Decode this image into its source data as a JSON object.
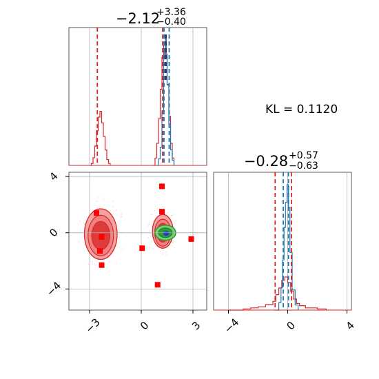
{
  "chart_data": {
    "type": "scatter",
    "annotation": "KL = 0.1120",
    "colors": {
      "red": "#d62728",
      "blue": "#1f77b4",
      "green": "#2ca02c",
      "marker": "#ff0000",
      "grid": "#b0b0b0"
    },
    "panels": {
      "top": {
        "type": "histogram",
        "title": {
          "main": "−2.12",
          "sup": "+3.36",
          "sub": "−0.40"
        },
        "xlim": [
          -4.2,
          3.8
        ],
        "vlines_red": [
          -2.55,
          1.24
        ],
        "vlines_blue": [
          1.32,
          1.62
        ],
        "red_series": [
          {
            "x": -3.0,
            "h": 0.0
          },
          {
            "x": -2.9,
            "h": 0.02
          },
          {
            "x": -2.8,
            "h": 0.08
          },
          {
            "x": -2.7,
            "h": 0.2
          },
          {
            "x": -2.6,
            "h": 0.36
          },
          {
            "x": -2.5,
            "h": 0.5
          },
          {
            "x": -2.4,
            "h": 0.56
          },
          {
            "x": -2.3,
            "h": 0.44
          },
          {
            "x": -2.2,
            "h": 0.3
          },
          {
            "x": -2.1,
            "h": 0.16
          },
          {
            "x": -2.0,
            "h": 0.06
          },
          {
            "x": -1.9,
            "h": 0.02
          },
          {
            "x": -1.8,
            "h": 0.0
          },
          {
            "x": 0.7,
            "h": 0.0
          },
          {
            "x": 0.8,
            "h": 0.06
          },
          {
            "x": 0.9,
            "h": 0.18
          },
          {
            "x": 1.0,
            "h": 0.38
          },
          {
            "x": 1.1,
            "h": 0.62
          },
          {
            "x": 1.2,
            "h": 0.88
          },
          {
            "x": 1.3,
            "h": 0.98
          },
          {
            "x": 1.4,
            "h": 0.9
          },
          {
            "x": 1.5,
            "h": 0.66
          },
          {
            "x": 1.6,
            "h": 0.4
          },
          {
            "x": 1.7,
            "h": 0.18
          },
          {
            "x": 1.8,
            "h": 0.06
          },
          {
            "x": 1.9,
            "h": 0.0
          }
        ],
        "blue_series": [
          {
            "x": 0.9,
            "h": 0.0
          },
          {
            "x": 1.0,
            "h": 0.05
          },
          {
            "x": 1.1,
            "h": 0.14
          },
          {
            "x": 1.2,
            "h": 0.42
          },
          {
            "x": 1.3,
            "h": 0.82
          },
          {
            "x": 1.35,
            "h": 0.9
          },
          {
            "x": 1.4,
            "h": 1.0
          },
          {
            "x": 1.45,
            "h": 0.86
          },
          {
            "x": 1.5,
            "h": 0.62
          },
          {
            "x": 1.6,
            "h": 0.32
          },
          {
            "x": 1.7,
            "h": 0.12
          },
          {
            "x": 1.8,
            "h": 0.04
          },
          {
            "x": 1.9,
            "h": 0.0
          }
        ]
      },
      "scatter": {
        "xlim": [
          -4.2,
          3.8
        ],
        "ylim": [
          -5.5,
          4.3
        ],
        "xticks": [
          -3,
          0,
          3
        ],
        "xtick_labels": [
          "−3",
          "0",
          "3"
        ],
        "yticks": [
          4,
          0,
          -4
        ],
        "ytick_labels": [
          "4",
          "0",
          "−4"
        ],
        "red_blob_centers": [
          {
            "x": -2.35,
            "y": -0.1,
            "rx": 0.95,
            "ry": 1.8
          },
          {
            "x": 1.25,
            "y": 0.1,
            "rx": 0.6,
            "ry": 1.2
          }
        ],
        "green_center": {
          "x": 1.4,
          "y": 0.0
        },
        "blue_center": {
          "x": 1.45,
          "y": -0.05
        },
        "markers": [
          {
            "x": -2.6,
            "y": 1.4
          },
          {
            "x": -2.3,
            "y": -0.3
          },
          {
            "x": -2.4,
            "y": -1.3
          },
          {
            "x": -2.3,
            "y": -2.3
          },
          {
            "x": 1.2,
            "y": 3.3
          },
          {
            "x": 1.2,
            "y": 1.5
          },
          {
            "x": 0.05,
            "y": -1.1
          },
          {
            "x": 0.95,
            "y": -3.7
          },
          {
            "x": 2.9,
            "y": -0.45
          }
        ]
      },
      "right": {
        "type": "histogram",
        "title": {
          "main": "−0.28",
          "sup": "+0.57",
          "sub": "−0.63"
        },
        "xlim": [
          -5.0,
          4.3
        ],
        "xticks": [
          -4,
          0,
          4
        ],
        "xtick_labels": [
          "−4",
          "0",
          "4"
        ],
        "vlines_red": [
          -0.85,
          0.25
        ],
        "vlines_blue": [
          -0.3,
          0.05
        ],
        "red_series": [
          {
            "x": -4.0,
            "h": 0.0
          },
          {
            "x": -3.0,
            "h": 0.01
          },
          {
            "x": -2.5,
            "h": 0.02
          },
          {
            "x": -2.0,
            "h": 0.03
          },
          {
            "x": -1.5,
            "h": 0.05
          },
          {
            "x": -1.0,
            "h": 0.08
          },
          {
            "x": -0.8,
            "h": 0.14
          },
          {
            "x": -0.6,
            "h": 0.2
          },
          {
            "x": -0.4,
            "h": 0.27
          },
          {
            "x": -0.2,
            "h": 0.3
          },
          {
            "x": 0.0,
            "h": 0.25
          },
          {
            "x": 0.2,
            "h": 0.17
          },
          {
            "x": 0.4,
            "h": 0.1
          },
          {
            "x": 0.6,
            "h": 0.06
          },
          {
            "x": 0.8,
            "h": 0.04
          },
          {
            "x": 1.2,
            "h": 0.02
          },
          {
            "x": 2.0,
            "h": 0.01
          },
          {
            "x": 2.6,
            "h": 0.0
          }
        ],
        "blue_series": [
          {
            "x": -0.9,
            "h": 0.0
          },
          {
            "x": -0.6,
            "h": 0.06
          },
          {
            "x": -0.45,
            "h": 0.18
          },
          {
            "x": -0.35,
            "h": 0.4
          },
          {
            "x": -0.25,
            "h": 0.66
          },
          {
            "x": -0.15,
            "h": 0.86
          },
          {
            "x": -0.05,
            "h": 1.0
          },
          {
            "x": 0.05,
            "h": 0.82
          },
          {
            "x": 0.15,
            "h": 0.46
          },
          {
            "x": 0.3,
            "h": 0.16
          },
          {
            "x": 0.5,
            "h": 0.04
          },
          {
            "x": 0.7,
            "h": 0.0
          }
        ]
      }
    }
  }
}
